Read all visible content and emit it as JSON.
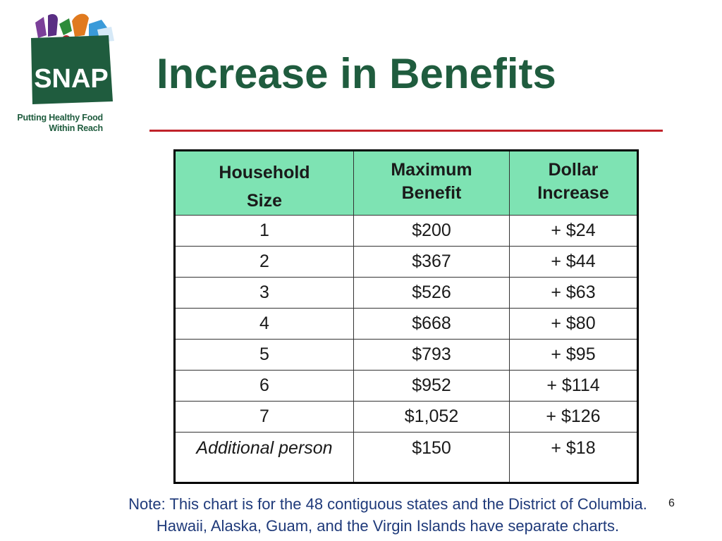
{
  "logo": {
    "text": "SNAP",
    "tagline_line1": "Putting Healthy Food",
    "tagline_line2": "Within Reach"
  },
  "slide": {
    "title": "Increase in Benefits",
    "number": "6"
  },
  "table": {
    "headers": {
      "col1_line1": "Household",
      "col1_line2": "Size",
      "col2_line1": "Maximum",
      "col2_line2": "Benefit",
      "col3_line1": "Dollar",
      "col3_line2": "Increase"
    },
    "rows": [
      {
        "size": "1",
        "benefit": "$200",
        "increase": "+ $24"
      },
      {
        "size": "2",
        "benefit": "$367",
        "increase": "+ $44"
      },
      {
        "size": "3",
        "benefit": "$526",
        "increase": "+ $63"
      },
      {
        "size": "4",
        "benefit": "$668",
        "increase": "+ $80"
      },
      {
        "size": "5",
        "benefit": "$793",
        "increase": "+ $95"
      },
      {
        "size": "6",
        "benefit": "$952",
        "increase": "+ $114"
      },
      {
        "size": "7",
        "benefit": "$1,052",
        "increase": "+ $126"
      },
      {
        "size": "Additional person",
        "benefit": "$150",
        "increase": "+ $18"
      }
    ]
  },
  "note": {
    "line1": "Note: This chart is for the 48 contiguous states and the District of Columbia.",
    "line2": "Hawaii, Alaska, Guam, and the Virgin Islands have separate charts."
  },
  "colors": {
    "title_green": "#1f5c3e",
    "header_bg": "#7ee3b3",
    "rule_red": "#c0232b",
    "note_blue": "#1f3a7a"
  }
}
